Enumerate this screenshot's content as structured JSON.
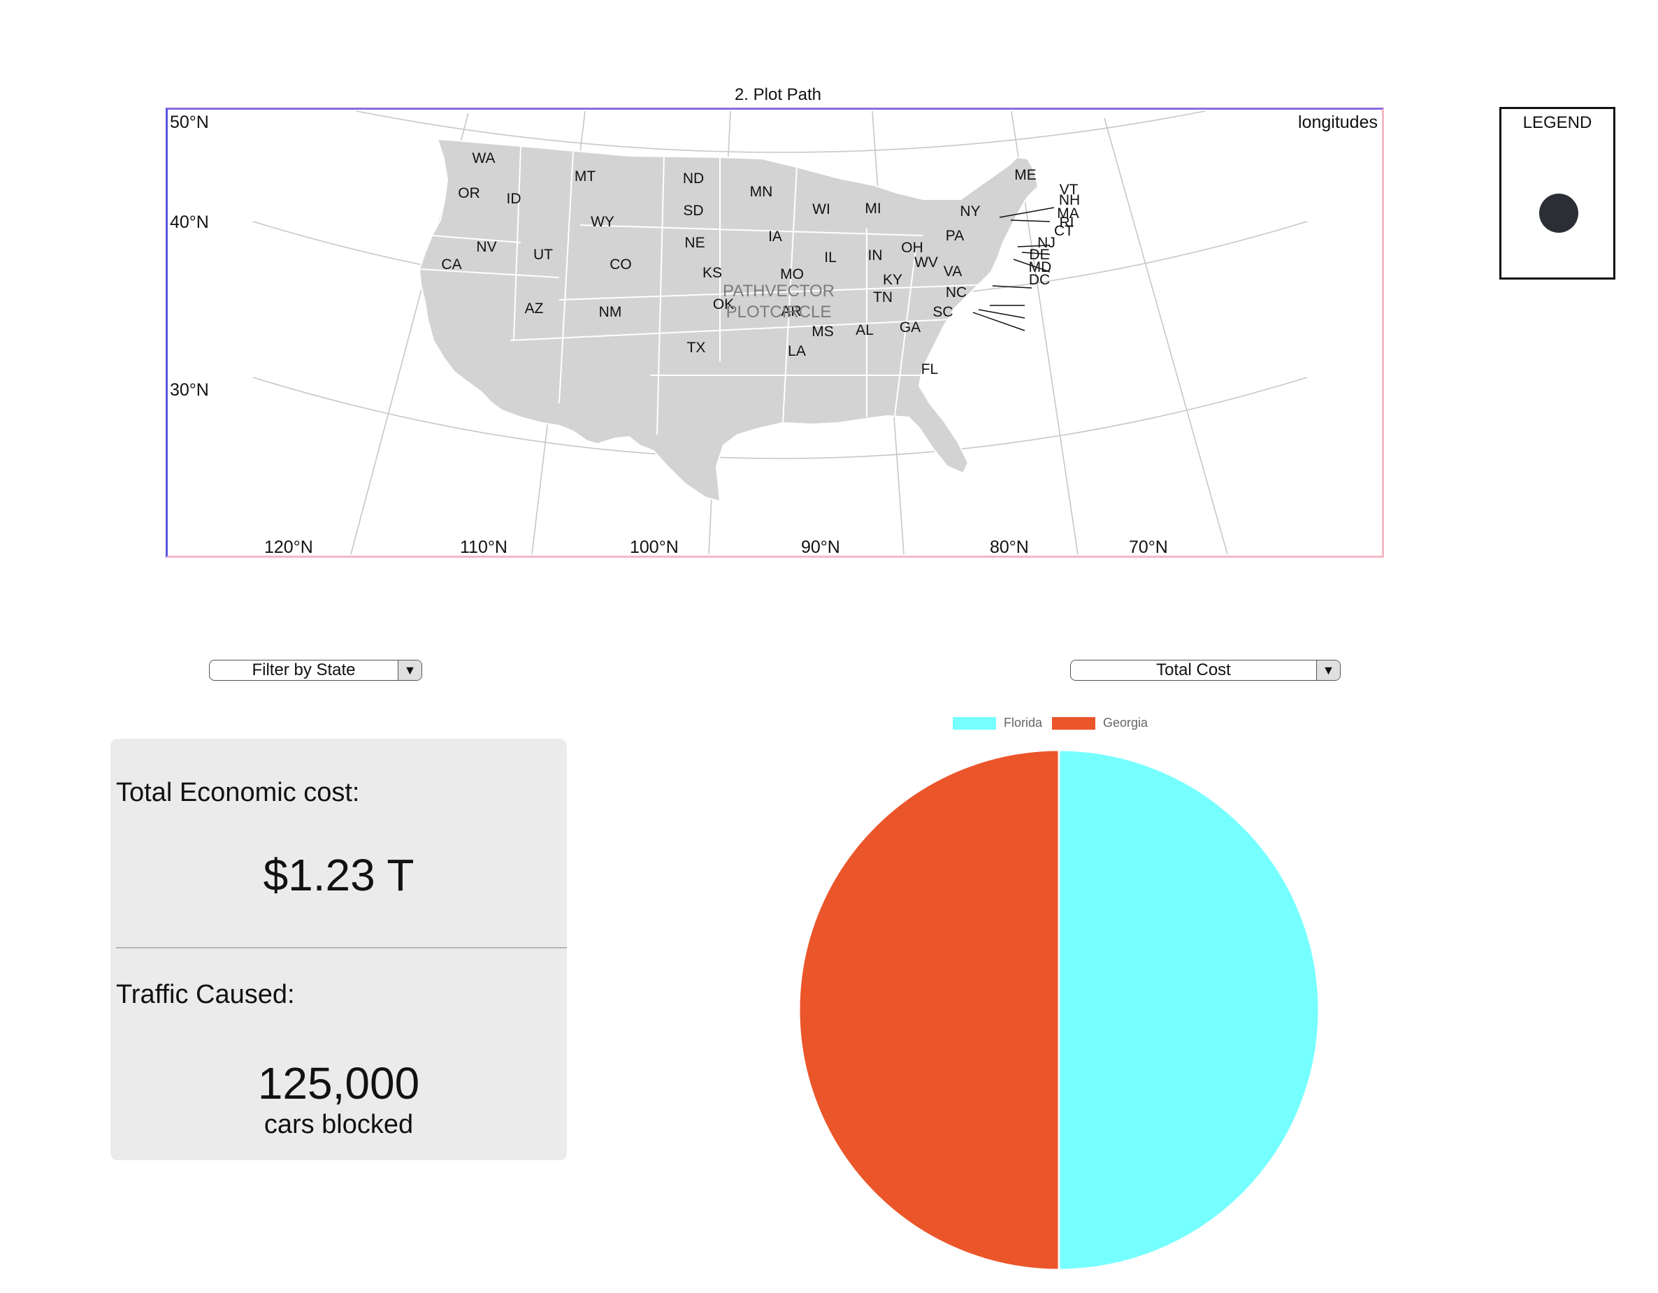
{
  "map": {
    "title": "2. Plot Path",
    "corner_label": "longitudes",
    "latitude_labels": [
      "50°N",
      "40°N",
      "30°N"
    ],
    "longitude_labels": [
      "120°N",
      "110°N",
      "100°N",
      "90°N",
      "80°N",
      "70°N"
    ],
    "overlay_lines": [
      "PATHVECTOR",
      "PLOTCIRCLE"
    ],
    "states": [
      "WA",
      "OR",
      "CA",
      "ID",
      "NV",
      "MT",
      "WY",
      "UT",
      "AZ",
      "CO",
      "NM",
      "ND",
      "SD",
      "NE",
      "KS",
      "OK",
      "TX",
      "MN",
      "IA",
      "MO",
      "AR",
      "LA",
      "WI",
      "IL",
      "MI",
      "IN",
      "OH",
      "KY",
      "TN",
      "MS",
      "AL",
      "GA",
      "FL",
      "SC",
      "NC",
      "VA",
      "WV",
      "PA",
      "NY",
      "ME",
      "VT",
      "NH",
      "MA",
      "RI",
      "CT",
      "NJ",
      "DE",
      "MD",
      "DC"
    ],
    "fill_color": "#d3d3d3"
  },
  "legend": {
    "title": "LEGEND",
    "marker_color": "#2b2e34"
  },
  "filters": {
    "state_filter_label": "Filter by State",
    "metric_select_label": "Total Cost",
    "arrow_glyph": "▼"
  },
  "stats": {
    "cost_heading": "Total Economic cost:",
    "cost_value": "$1.23 T",
    "traffic_heading": "Traffic Caused:",
    "traffic_value": "125,000",
    "traffic_unit": "cars blocked"
  },
  "chart_data": {
    "type": "pie",
    "categories": [
      "Florida",
      "Georgia"
    ],
    "values": [
      50,
      50
    ],
    "colors": [
      "#76ffff",
      "#eb552a"
    ],
    "legend_position": "top"
  }
}
